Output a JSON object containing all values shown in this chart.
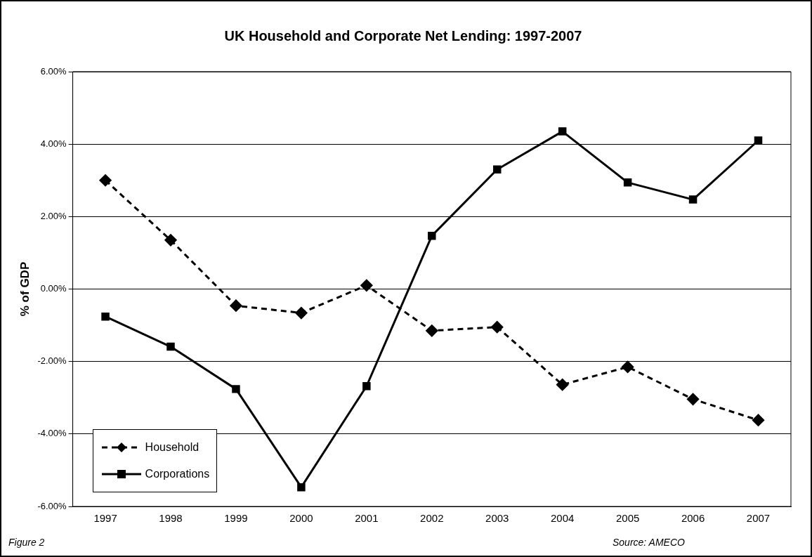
{
  "chart_data": {
    "type": "line",
    "title": "UK Household and Corporate Net Lending: 1997-2007",
    "ylabel": "% of GDP",
    "categories": [
      "1997",
      "1998",
      "1999",
      "2000",
      "2001",
      "2002",
      "2003",
      "2004",
      "2005",
      "2006",
      "2007"
    ],
    "series": [
      {
        "name": "Household",
        "color": "#000000",
        "marker": "diamond",
        "line_style": "dashed",
        "values": [
          3.0,
          1.35,
          -0.46,
          -0.66,
          0.1,
          -1.15,
          -1.05,
          -2.64,
          -2.15,
          -3.04,
          -3.62
        ]
      },
      {
        "name": "Corporations",
        "color": "#000000",
        "marker": "square",
        "line_style": "solid",
        "values": [
          -0.76,
          -1.59,
          -2.76,
          -5.47,
          -2.68,
          1.47,
          3.3,
          4.35,
          2.94,
          2.47,
          4.1
        ]
      }
    ],
    "ylim": [
      -6,
      6
    ],
    "yticks": [
      {
        "value": -6,
        "label": "-6.00%"
      },
      {
        "value": -4,
        "label": "-4.00%"
      },
      {
        "value": -2,
        "label": "-2.00%"
      },
      {
        "value": 0,
        "label": "0.00%"
      },
      {
        "value": 2,
        "label": "2.00%"
      },
      {
        "value": 4,
        "label": "4.00%"
      },
      {
        "value": 6,
        "label": "6.00%"
      }
    ],
    "grid": "y",
    "legend": "bottom left",
    "annotations": [
      "Figure 2",
      "Source: AMECO"
    ]
  }
}
